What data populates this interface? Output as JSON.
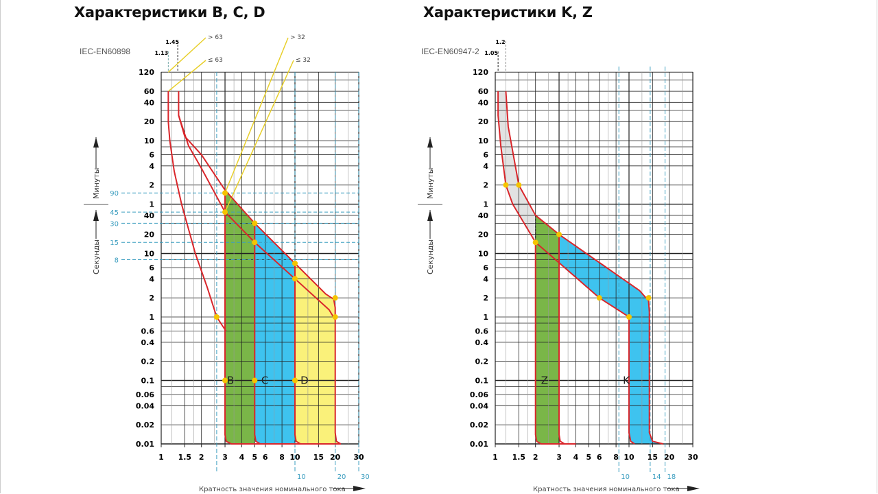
{
  "colors": {
    "red": "#d9262b",
    "green": "#7ab648",
    "blue": "#3ec3ef",
    "yellow": "#faf17a",
    "gray": "#e2e2e2",
    "dot": "#f5c400",
    "guide": "#e8cf2a",
    "dashBlue": "#3a9dbf"
  },
  "chart_data": [
    {
      "type": "line",
      "title": "Характеристики B, C, D",
      "standard": "IEC-EN60898",
      "xlabel": "Кратность значения номинального тока",
      "ylabel_minutes": "Минуты",
      "ylabel_seconds": "Секунды",
      "xscale": "log",
      "yscale": "log",
      "xlim": [
        1,
        30
      ],
      "ylim_seconds": [
        0.01,
        7200
      ],
      "x_ticks": [
        "1",
        "1.5",
        "2",
        "3",
        "4",
        "5",
        "6",
        "8",
        "10",
        "15",
        "20",
        "30"
      ],
      "y_ticks_minutes": [
        "120",
        "60",
        "40",
        "20",
        "10",
        "6",
        "4",
        "2",
        "1"
      ],
      "y_ticks_seconds": [
        "40",
        "20",
        "10",
        "6",
        "4",
        "2",
        "1",
        "0.6",
        "0.4",
        "0.2",
        "0.1",
        "0.06",
        "0.04",
        "0.02",
        "0.01"
      ],
      "top_markers": [
        {
          "label": "1.13",
          "x": 1.13
        },
        {
          "label": "1.45",
          "x": 1.33
        }
      ],
      "guide_labels": [
        "> 63",
        "≤ 63",
        "> 32",
        "≤ 32"
      ],
      "second_marks": [
        {
          "label": "90",
          "s": 90
        },
        {
          "label": "45",
          "s": 45
        },
        {
          "label": "30",
          "s": 30
        },
        {
          "label": "15",
          "s": 15
        },
        {
          "label": "8",
          "s": 8
        }
      ],
      "bottom_marks": [
        {
          "label": "10",
          "x": 10
        },
        {
          "label": "20",
          "x": 20
        },
        {
          "label": "30",
          "x": 30
        }
      ],
      "band_labels": [
        {
          "label": "B",
          "x": 3.1,
          "s": 0.1
        },
        {
          "label": "C",
          "x": 5.6,
          "s": 0.1
        },
        {
          "label": "D",
          "x": 11,
          "s": 0.1
        }
      ],
      "series": [
        {
          "name": "thermal-1.13",
          "points": [
            [
              1.13,
              3600
            ],
            [
              1.13,
              1200
            ],
            [
              1.16,
              600
            ],
            [
              1.25,
              200
            ],
            [
              1.42,
              60
            ],
            [
              1.8,
              10
            ],
            [
              2.2,
              3
            ],
            [
              2.6,
              1
            ],
            [
              3.05,
              0.6
            ]
          ]
        },
        {
          "name": "upper-envelope",
          "points": [
            [
              1.35,
              3600
            ],
            [
              1.35,
              1500
            ],
            [
              1.5,
              700
            ],
            [
              2,
              360
            ],
            [
              3,
              100
            ],
            [
              5,
              30
            ],
            [
              10,
              7
            ],
            [
              17,
              2.3
            ],
            [
              19.5,
              1.9
            ],
            [
              20,
              1.4
            ],
            [
              20,
              0.015
            ],
            [
              20.4,
              0.011
            ],
            [
              22,
              0.01
            ]
          ]
        },
        {
          "name": "lower-envelope",
          "points": [
            [
              1.35,
              1500
            ],
            [
              1.6,
              500
            ],
            [
              2,
              220
            ],
            [
              3,
              45
            ],
            [
              5,
              15
            ],
            [
              10,
              4
            ],
            [
              18,
              1.3
            ],
            [
              20,
              0.9
            ]
          ]
        }
      ],
      "bands": [
        {
          "name": "B",
          "color": "green",
          "points": [
            [
              3,
              100
            ],
            [
              5,
              30
            ],
            [
              5,
              0.01
            ],
            [
              3.35,
              0.01
            ],
            [
              3.05,
              0.011
            ],
            [
              3,
              0.014
            ]
          ]
        },
        {
          "name": "C",
          "color": "blue",
          "points": [
            [
              5,
              30
            ],
            [
              10,
              7
            ],
            [
              10,
              0.01
            ],
            [
              5.5,
              0.01
            ],
            [
              5.1,
              0.011
            ],
            [
              5,
              0.014
            ]
          ]
        },
        {
          "name": "D",
          "color": "yellow",
          "points": [
            [
              10,
              7
            ],
            [
              17,
              2.3
            ],
            [
              19.5,
              1.9
            ],
            [
              20,
              1.4
            ],
            [
              20,
              0.015
            ],
            [
              20.4,
              0.011
            ],
            [
              22,
              0.01
            ],
            [
              11,
              0.01
            ],
            [
              10.2,
              0.011
            ],
            [
              10,
              0.014
            ]
          ]
        }
      ],
      "markers": [
        [
          3,
          90
        ],
        [
          3,
          45
        ],
        [
          5,
          30
        ],
        [
          5,
          15
        ],
        [
          10,
          7
        ],
        [
          10,
          4
        ],
        [
          20,
          2
        ],
        [
          20,
          1
        ],
        [
          2.6,
          1
        ],
        [
          3,
          0.1
        ],
        [
          5,
          0.1
        ],
        [
          10,
          0.1
        ]
      ]
    },
    {
      "type": "line",
      "title": "Характеристики K, Z",
      "standard": "IEC-EN60947-2",
      "xlabel": "Кратность значения номинального тока",
      "ylabel_minutes": "Минуты",
      "ylabel_seconds": "Секунды",
      "xscale": "log",
      "yscale": "log",
      "xlim": [
        1,
        30
      ],
      "ylim_seconds": [
        0.01,
        7200
      ],
      "x_ticks": [
        "1",
        "1.5",
        "2",
        "3",
        "4",
        "5",
        "6",
        "8",
        "10",
        "15",
        "20",
        "30"
      ],
      "y_ticks_minutes": [
        "120",
        "60",
        "40",
        "20",
        "10",
        "6",
        "4",
        "2",
        "1"
      ],
      "y_ticks_seconds": [
        "40",
        "20",
        "10",
        "6",
        "4",
        "2",
        "1",
        "0.6",
        "0.4",
        "0.2",
        "0.1",
        "0.06",
        "0.04",
        "0.02",
        "0.01"
      ],
      "top_markers": [
        {
          "label": "1.05",
          "x": 1.05
        },
        {
          "label": "1.2",
          "x": 1.2
        }
      ],
      "bottom_marks": [
        {
          "label": "10",
          "x": 8.4
        },
        {
          "label": "14",
          "x": 14.4
        },
        {
          "label": "18",
          "x": 18.6
        }
      ],
      "band_labels": [
        {
          "label": "Z",
          "x": 2.2,
          "s": 0.1
        },
        {
          "label": "K",
          "x": 9,
          "s": 0.1
        }
      ],
      "series": [
        {
          "name": "lower-envelope",
          "points": [
            [
              1.05,
              3600
            ],
            [
              1.05,
              1500
            ],
            [
              1.1,
              500
            ],
            [
              1.2,
              120
            ],
            [
              1.35,
              60
            ],
            [
              2,
              15
            ],
            [
              2.5,
              10
            ],
            [
              6,
              2
            ],
            [
              8.5,
              1.25
            ],
            [
              10,
              1
            ],
            [
              10,
              0.015
            ],
            [
              10.3,
              0.011
            ],
            [
              11,
              0.01
            ]
          ]
        },
        {
          "name": "upper-envelope",
          "points": [
            [
              1.2,
              3600
            ],
            [
              1.25,
              1000
            ],
            [
              1.5,
              120
            ],
            [
              2,
              40
            ],
            [
              3,
              20
            ],
            [
              12,
              2.6
            ],
            [
              14,
              1.8
            ],
            [
              14.2,
              1.2
            ],
            [
              14.2,
              0.015
            ],
            [
              15,
              0.011
            ],
            [
              18,
              0.01
            ]
          ]
        }
      ],
      "bands": [
        {
          "name": "gray",
          "color": "gray",
          "points": [
            [
              1.2,
              3600
            ],
            [
              1.25,
              1000
            ],
            [
              1.5,
              120
            ],
            [
              2,
              40
            ],
            [
              2,
              15
            ],
            [
              1.35,
              60
            ],
            [
              1.2,
              120
            ],
            [
              1.1,
              500
            ],
            [
              1.05,
              1500
            ],
            [
              1.05,
              3600
            ]
          ]
        },
        {
          "name": "Z",
          "color": "green",
          "points": [
            [
              2,
              40
            ],
            [
              3,
              20
            ],
            [
              3,
              0.01
            ],
            [
              2.2,
              0.01
            ],
            [
              2.03,
              0.011
            ],
            [
              2,
              0.014
            ]
          ]
        },
        {
          "name": "K",
          "color": "blue",
          "points": [
            [
              3,
              20
            ],
            [
              12,
              2.6
            ],
            [
              14,
              1.8
            ],
            [
              14.2,
              1.2
            ],
            [
              14.2,
              0.015
            ],
            [
              15,
              0.011
            ],
            [
              18,
              0.01
            ],
            [
              11,
              0.01
            ],
            [
              10.3,
              0.011
            ],
            [
              10,
              0.015
            ],
            [
              10,
              1
            ],
            [
              8.5,
              1.25
            ],
            [
              6,
              2
            ],
            [
              3,
              7
            ]
          ]
        }
      ],
      "markers": [
        [
          1.2,
          120
        ],
        [
          1.5,
          120
        ],
        [
          2,
          15
        ],
        [
          3,
          20
        ],
        [
          6,
          2
        ],
        [
          14,
          2
        ],
        [
          10,
          1
        ]
      ]
    }
  ]
}
